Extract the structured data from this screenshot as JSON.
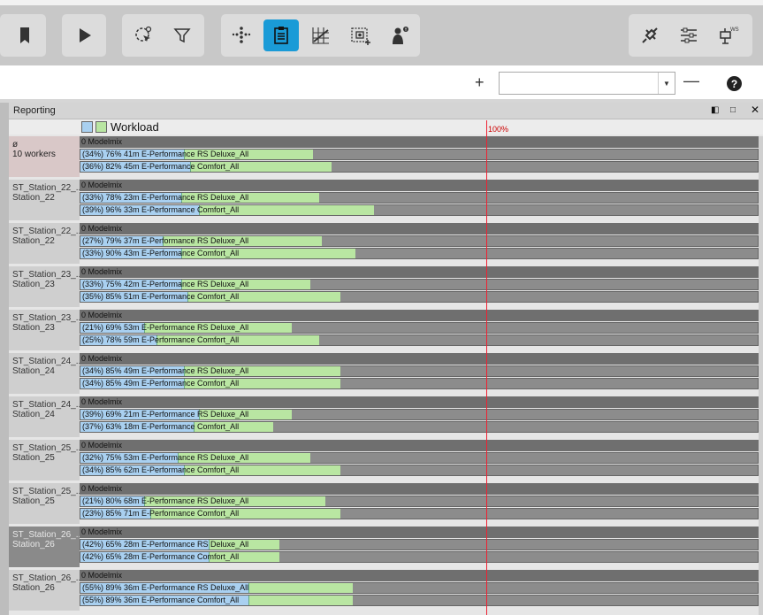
{
  "toolbar": {
    "groups": [
      {
        "buttons": [
          "bookmark-icon"
        ]
      },
      {
        "buttons": [
          "play-icon"
        ]
      },
      {
        "buttons": [
          "select-cursor-icon",
          "filter-icon"
        ]
      },
      {
        "buttons": [
          "scatter-icon",
          "clipboard-icon",
          "chart-grid-icon",
          "capture-icon",
          "worker-info-icon"
        ]
      },
      {
        "buttons": [
          "plug-icon",
          "settings-sliders-icon",
          "workstation-icon"
        ]
      }
    ],
    "active": "clipboard-icon",
    "accent": "#1a9bd7",
    "ws_label": "WS"
  },
  "subbar": {
    "plus": "+",
    "minus": "—",
    "combo_value": "",
    "help": "?"
  },
  "panel": {
    "title": "Reporting",
    "legend_label": "Workload",
    "pct_marker": "100%"
  },
  "groups": [
    {
      "label1": "ø",
      "label2": "10 workers",
      "style": "first",
      "head": "0  Modelmix",
      "rows": [
        {
          "text": "(34%) 76%  41m  E-Performance RS Deluxe_All",
          "blue": 0.34,
          "total": 0.76
        },
        {
          "text": "(36%) 82%  45m  E-Performance Comfort_All",
          "blue": 0.36,
          "total": 0.82
        }
      ]
    },
    {
      "label1": "ST_Station_22_...",
      "label2": "Station_22",
      "style": "",
      "head": "0  Modelmix",
      "rows": [
        {
          "text": "(33%) 78%  23m  E-Performance RS Deluxe_All",
          "blue": 0.33,
          "total": 0.78
        },
        {
          "text": "(39%) 96%  33m  E-Performance Comfort_All",
          "blue": 0.39,
          "total": 0.96
        }
      ]
    },
    {
      "label1": "ST_Station_22_...",
      "label2": "Station_22",
      "style": "",
      "head": "0  Modelmix",
      "rows": [
        {
          "text": "(27%) 79%  37m  E-Performance RS Deluxe_All",
          "blue": 0.27,
          "total": 0.79
        },
        {
          "text": "(33%) 90%  43m  E-Performance Comfort_All",
          "blue": 0.33,
          "total": 0.9
        }
      ]
    },
    {
      "label1": "ST_Station_23_...",
      "label2": "Station_23",
      "style": "",
      "head": "0  Modelmix",
      "rows": [
        {
          "text": "(33%) 75%  42m  E-Performance RS Deluxe_All",
          "blue": 0.33,
          "total": 0.75
        },
        {
          "text": "(35%) 85%  51m  E-Performance Comfort_All",
          "blue": 0.35,
          "total": 0.85
        }
      ]
    },
    {
      "label1": "ST_Station_23_...",
      "label2": "Station_23",
      "style": "",
      "head": "0  Modelmix",
      "rows": [
        {
          "text": "(21%) 69%  53m  E-Performance RS Deluxe_All",
          "blue": 0.21,
          "total": 0.69
        },
        {
          "text": "(25%) 78%  59m  E-Performance Comfort_All",
          "blue": 0.25,
          "total": 0.78
        }
      ]
    },
    {
      "label1": "ST_Station_24_...",
      "label2": "Station_24",
      "style": "",
      "head": "0  Modelmix",
      "rows": [
        {
          "text": "(34%) 85%  49m  E-Performance RS Deluxe_All",
          "blue": 0.34,
          "total": 0.85
        },
        {
          "text": "(34%) 85%  49m  E-Performance Comfort_All",
          "blue": 0.34,
          "total": 0.85
        }
      ]
    },
    {
      "label1": "ST_Station_24_...",
      "label2": "Station_24",
      "style": "",
      "head": "0  Modelmix",
      "rows": [
        {
          "text": "(39%) 69%  21m  E-Performance RS Deluxe_All",
          "blue": 0.39,
          "total": 0.69
        },
        {
          "text": "(37%) 63%  18m  E-Performance Comfort_All",
          "blue": 0.37,
          "total": 0.63
        }
      ]
    },
    {
      "label1": "ST_Station_25_...",
      "label2": "Station_25",
      "style": "",
      "head": "0  Modelmix",
      "rows": [
        {
          "text": "(32%) 75%  53m  E-Performance RS Deluxe_All",
          "blue": 0.32,
          "total": 0.75
        },
        {
          "text": "(34%) 85%  62m  E-Performance Comfort_All",
          "blue": 0.34,
          "total": 0.85
        }
      ]
    },
    {
      "label1": "ST_Station_25_...",
      "label2": "Station_25",
      "style": "",
      "head": "0  Modelmix",
      "rows": [
        {
          "text": "(21%) 80%  68m  E-Performance RS Deluxe_All",
          "blue": 0.21,
          "total": 0.8
        },
        {
          "text": "(23%) 85%  71m  E-Performance Comfort_All",
          "blue": 0.23,
          "total": 0.85
        }
      ]
    },
    {
      "label1": "ST_Station_26_...",
      "label2": "Station_26",
      "style": "hl",
      "head": "0  Modelmix",
      "rows": [
        {
          "text": "(42%) 65%  28m  E-Performance RS Deluxe_All",
          "blue": 0.42,
          "total": 0.65
        },
        {
          "text": "(42%) 65%  28m  E-Performance Comfort_All",
          "blue": 0.42,
          "total": 0.65
        }
      ]
    },
    {
      "label1": "ST_Station_26_...",
      "label2": "Station_26",
      "style": "",
      "head": "0  Modelmix",
      "rows": [
        {
          "text": "(55%) 89%  36m  E-Performance RS Deluxe_All",
          "blue": 0.55,
          "total": 0.89
        },
        {
          "text": "(55%) 89%  36m  E-Performance Comfort_All",
          "blue": 0.55,
          "total": 0.89
        }
      ]
    }
  ]
}
